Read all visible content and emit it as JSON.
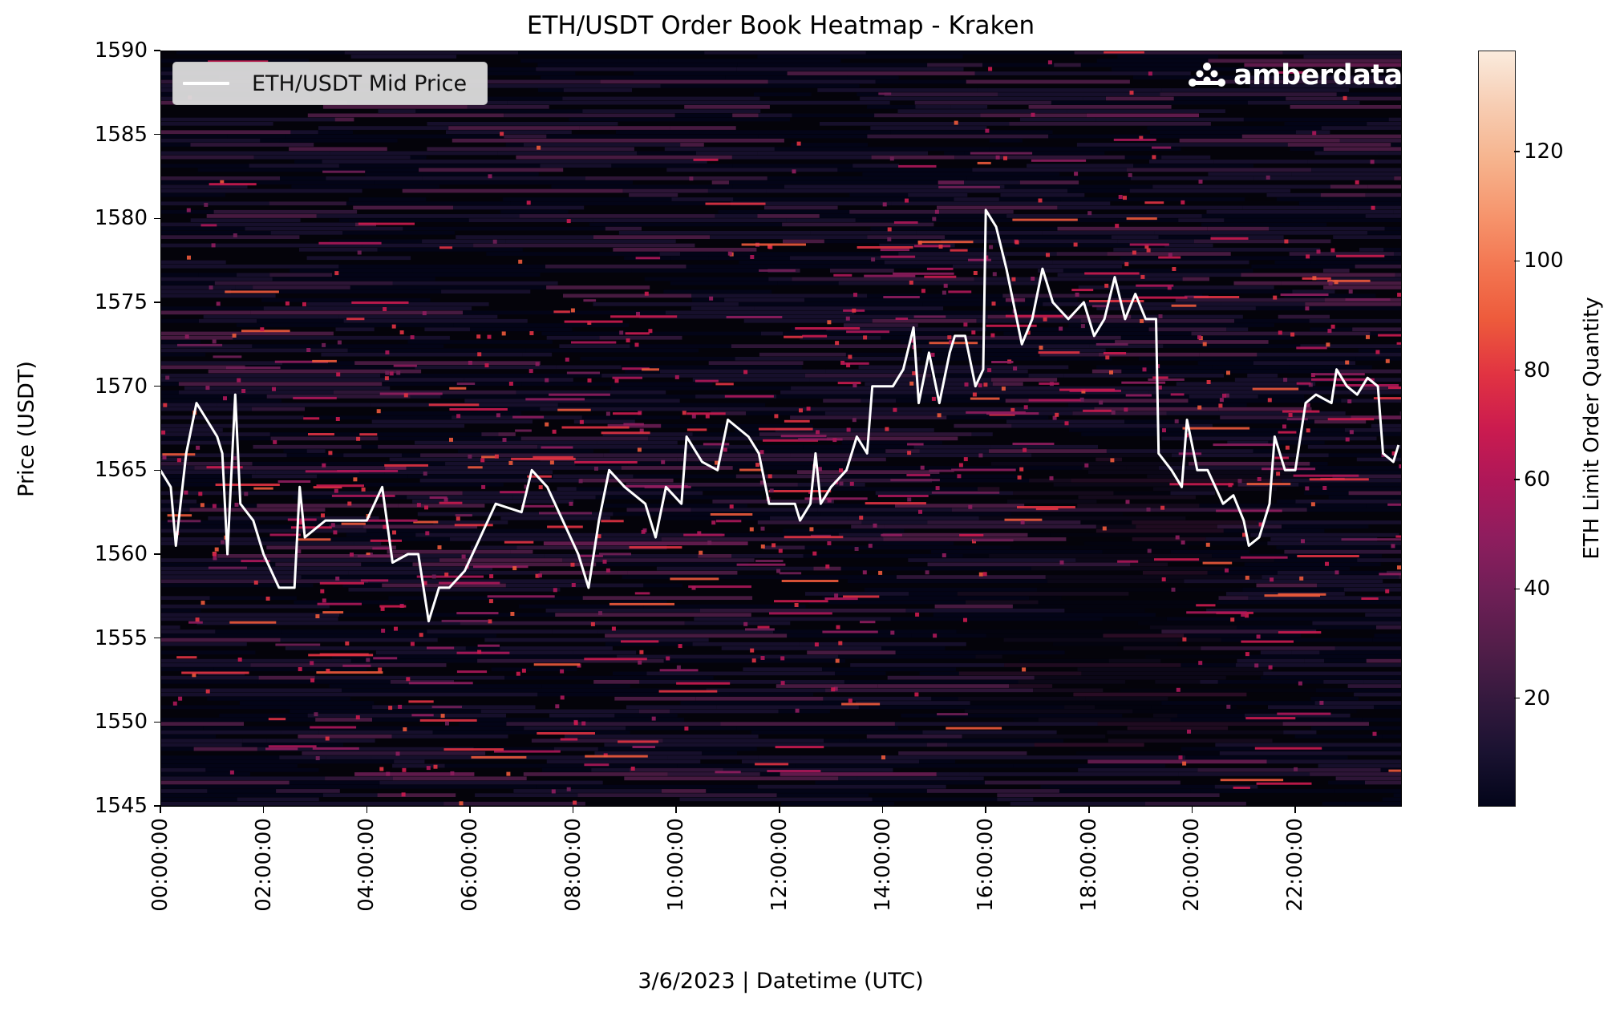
{
  "title": "ETH/USDT Order Book Heatmap - Kraken",
  "xlabel": "3/6/2023 | Datetime (UTC)",
  "ylabel": "Price (USDT)",
  "legend": {
    "label": "ETH/USDT Mid Price",
    "line_color": "#ffffff"
  },
  "logo": {
    "text": "amberdata"
  },
  "colorbar": {
    "label": "ETH Limit Order Quantity",
    "ticks": [
      "20",
      "40",
      "60",
      "80",
      "100",
      "120"
    ],
    "tick_values": [
      20,
      40,
      60,
      80,
      100,
      120
    ],
    "range": [
      0.3,
      138.5
    ],
    "colors": [
      "#03051a",
      "#1a1231",
      "#35193e",
      "#541e4a",
      "#701f57",
      "#8f1d5e",
      "#ad1759",
      "#cb1b4f",
      "#e13342",
      "#ed5a3b",
      "#f37651",
      "#f6966e",
      "#f6b48e",
      "#f7cdb3",
      "#faebdd"
    ]
  },
  "y_axis": {
    "ticks": [
      "1545",
      "1550",
      "1555",
      "1560",
      "1565",
      "1570",
      "1575",
      "1580",
      "1585",
      "1590"
    ],
    "range": [
      1545,
      1590
    ]
  },
  "x_axis": {
    "ticks": [
      "00:00:00",
      "02:00:00",
      "04:00:00",
      "06:00:00",
      "08:00:00",
      "10:00:00",
      "12:00:00",
      "14:00:00",
      "16:00:00",
      "18:00:00",
      "20:00:00",
      "22:00:00"
    ],
    "range_hours": [
      0,
      24.05
    ]
  },
  "chart_data": {
    "type": "heatmap",
    "title": "ETH/USDT Order Book Heatmap - Kraken",
    "xlabel": "3/6/2023 | Datetime (UTC)",
    "ylabel": "Price (USDT)",
    "colorbar_label": "ETH Limit Order Quantity",
    "colorbar_range": [
      0,
      138
    ],
    "colormap": "rocket",
    "ylim": [
      1545,
      1590
    ],
    "xlim_hours": [
      0,
      24
    ],
    "x_tick_labels": [
      "00:00:00",
      "02:00:00",
      "04:00:00",
      "06:00:00",
      "08:00:00",
      "10:00:00",
      "12:00:00",
      "14:00:00",
      "16:00:00",
      "18:00:00",
      "20:00:00",
      "22:00:00"
    ],
    "y_tick_labels": [
      1545,
      1550,
      1555,
      1560,
      1565,
      1570,
      1575,
      1580,
      1585,
      1590
    ],
    "legend": {
      "entries": [
        "ETH/USDT Mid Price"
      ],
      "position": "upper left"
    },
    "series": [
      {
        "name": "ETH/USDT Mid Price",
        "type": "line",
        "color": "#ffffff",
        "x_hours": [
          0.0,
          0.2,
          0.3,
          0.5,
          0.7,
          0.9,
          1.1,
          1.2,
          1.3,
          1.45,
          1.55,
          1.8,
          2.0,
          2.3,
          2.6,
          2.7,
          2.8,
          3.2,
          3.6,
          4.0,
          4.3,
          4.5,
          4.8,
          5.0,
          5.2,
          5.4,
          5.6,
          5.9,
          6.2,
          6.5,
          7.0,
          7.2,
          7.5,
          7.8,
          8.1,
          8.3,
          8.5,
          8.7,
          9.0,
          9.4,
          9.6,
          9.8,
          10.1,
          10.2,
          10.5,
          10.8,
          11.0,
          11.4,
          11.6,
          11.8,
          12.3,
          12.4,
          12.6,
          12.7,
          12.8,
          13.0,
          13.3,
          13.5,
          13.7,
          13.8,
          14.0,
          14.2,
          14.4,
          14.6,
          14.7,
          14.9,
          15.1,
          15.3,
          15.4,
          15.6,
          15.8,
          15.95,
          16.0,
          16.2,
          16.4,
          16.6,
          16.7,
          16.9,
          17.1,
          17.3,
          17.6,
          17.9,
          18.1,
          18.3,
          18.5,
          18.7,
          18.9,
          19.1,
          19.3,
          19.35,
          19.6,
          19.8,
          19.9,
          20.1,
          20.3,
          20.6,
          20.8,
          21.0,
          21.1,
          21.3,
          21.5,
          21.6,
          21.8,
          22.0,
          22.2,
          22.4,
          22.7,
          22.8,
          23.0,
          23.2,
          23.4,
          23.6,
          23.7,
          23.9,
          24.0
        ],
        "values": [
          1565,
          1564,
          1560.5,
          1566,
          1569,
          1568,
          1567,
          1566,
          1560,
          1569.5,
          1563,
          1562,
          1560,
          1558,
          1558,
          1564,
          1561,
          1562,
          1562,
          1562,
          1564,
          1559.5,
          1560,
          1560,
          1556,
          1558,
          1558,
          1559,
          1561,
          1563,
          1562.5,
          1565,
          1564,
          1562,
          1560,
          1558,
          1562,
          1565,
          1564,
          1563,
          1561,
          1564,
          1563,
          1567,
          1565.5,
          1565,
          1568,
          1567,
          1566,
          1563,
          1563,
          1562,
          1563,
          1566,
          1563,
          1564,
          1565,
          1567,
          1566,
          1570,
          1570,
          1570,
          1571,
          1573.5,
          1569,
          1572,
          1569,
          1572,
          1573,
          1573,
          1570,
          1571,
          1580.5,
          1579.5,
          1577,
          1574,
          1572.5,
          1574,
          1577,
          1575,
          1574,
          1575,
          1573,
          1574,
          1576.5,
          1574,
          1575.5,
          1574,
          1574,
          1566,
          1565,
          1564,
          1568,
          1565,
          1565,
          1563,
          1563.5,
          1562,
          1560.5,
          1561,
          1563,
          1567,
          1565,
          1565,
          1569,
          1569.5,
          1569,
          1571,
          1570,
          1569.5,
          1570.5,
          1570,
          1566,
          1565.5,
          1566.5
        ]
      }
    ],
    "heatmap_notes": "Dense horizontal order-level bands (mostly 0-40 ETH, purple) across 1545-1590; scattered red/pink high-quantity levels (60-90 ETH) tracing price near mid; darker/empty region 15:30-19:20 below 1565."
  }
}
